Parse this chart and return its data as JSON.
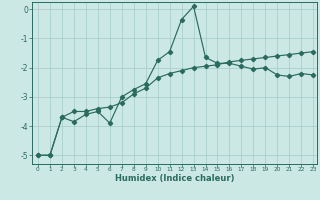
{
  "title": "",
  "xlabel": "Humidex (Indice chaleur)",
  "xlim": [
    -0.5,
    23.3
  ],
  "ylim": [
    -5.3,
    0.25
  ],
  "yticks": [
    0,
    -1,
    -2,
    -3,
    -4,
    -5
  ],
  "xticks": [
    0,
    1,
    2,
    3,
    4,
    5,
    6,
    7,
    8,
    9,
    10,
    11,
    12,
    13,
    14,
    15,
    16,
    17,
    18,
    19,
    20,
    21,
    22,
    23
  ],
  "background_color": "#cce8e4",
  "grid_color": "#aacfca",
  "line_color": "#2a6b60",
  "line1_x": [
    0,
    1,
    2,
    3,
    4,
    5,
    6,
    7,
    8,
    9,
    10,
    11,
    12,
    13,
    14,
    15,
    16,
    17,
    18,
    19,
    20,
    21,
    22,
    23
  ],
  "line1_y": [
    -5.0,
    -5.0,
    -3.7,
    -3.85,
    -3.6,
    -3.5,
    -3.9,
    -3.0,
    -2.75,
    -2.55,
    -1.75,
    -1.45,
    -0.35,
    0.1,
    -1.65,
    -1.85,
    -1.85,
    -1.95,
    -2.05,
    -2.0,
    -2.25,
    -2.3,
    -2.2,
    -2.25
  ],
  "line2_x": [
    0,
    1,
    2,
    3,
    4,
    5,
    6,
    7,
    8,
    9,
    10,
    11,
    12,
    13,
    14,
    15,
    16,
    17,
    18,
    19,
    20,
    21,
    22,
    23
  ],
  "line2_y": [
    -5.0,
    -5.0,
    -3.7,
    -3.5,
    -3.5,
    -3.4,
    -3.35,
    -3.2,
    -2.9,
    -2.7,
    -2.35,
    -2.2,
    -2.1,
    -2.0,
    -1.95,
    -1.9,
    -1.8,
    -1.75,
    -1.7,
    -1.65,
    -1.6,
    -1.55,
    -1.5,
    -1.45
  ],
  "marker": "D",
  "markersize": 2.2,
  "linewidth": 0.85
}
